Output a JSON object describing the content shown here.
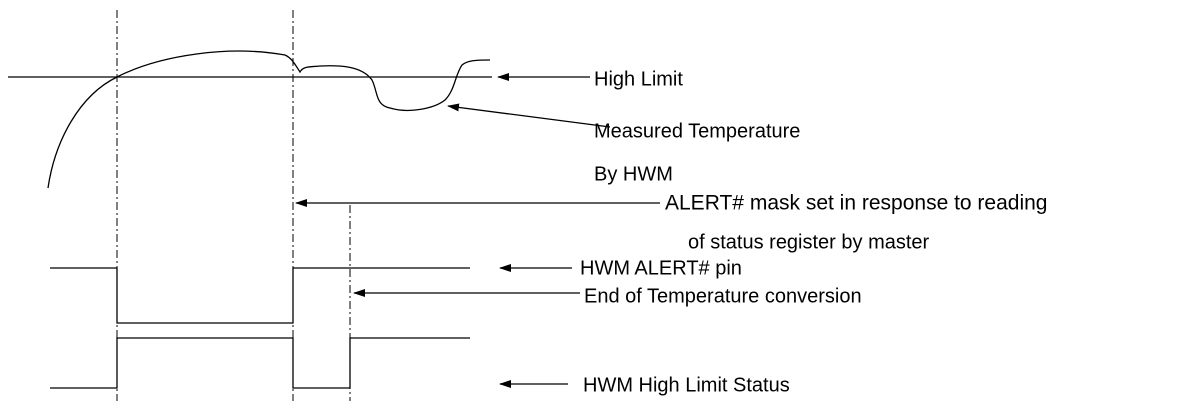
{
  "labels": {
    "high_limit": "High Limit",
    "measured_temperature": "Measured Temperature",
    "by_hwm": "By HWM",
    "alert_mask_1": "ALERT# mask set in response to reading",
    "alert_mask_2": "of status register by master",
    "alert_pin": "HWM ALERT# pin",
    "end_conversion": "End of Temperature conversion",
    "high_limit_status": "HWM High Limit Status"
  }
}
